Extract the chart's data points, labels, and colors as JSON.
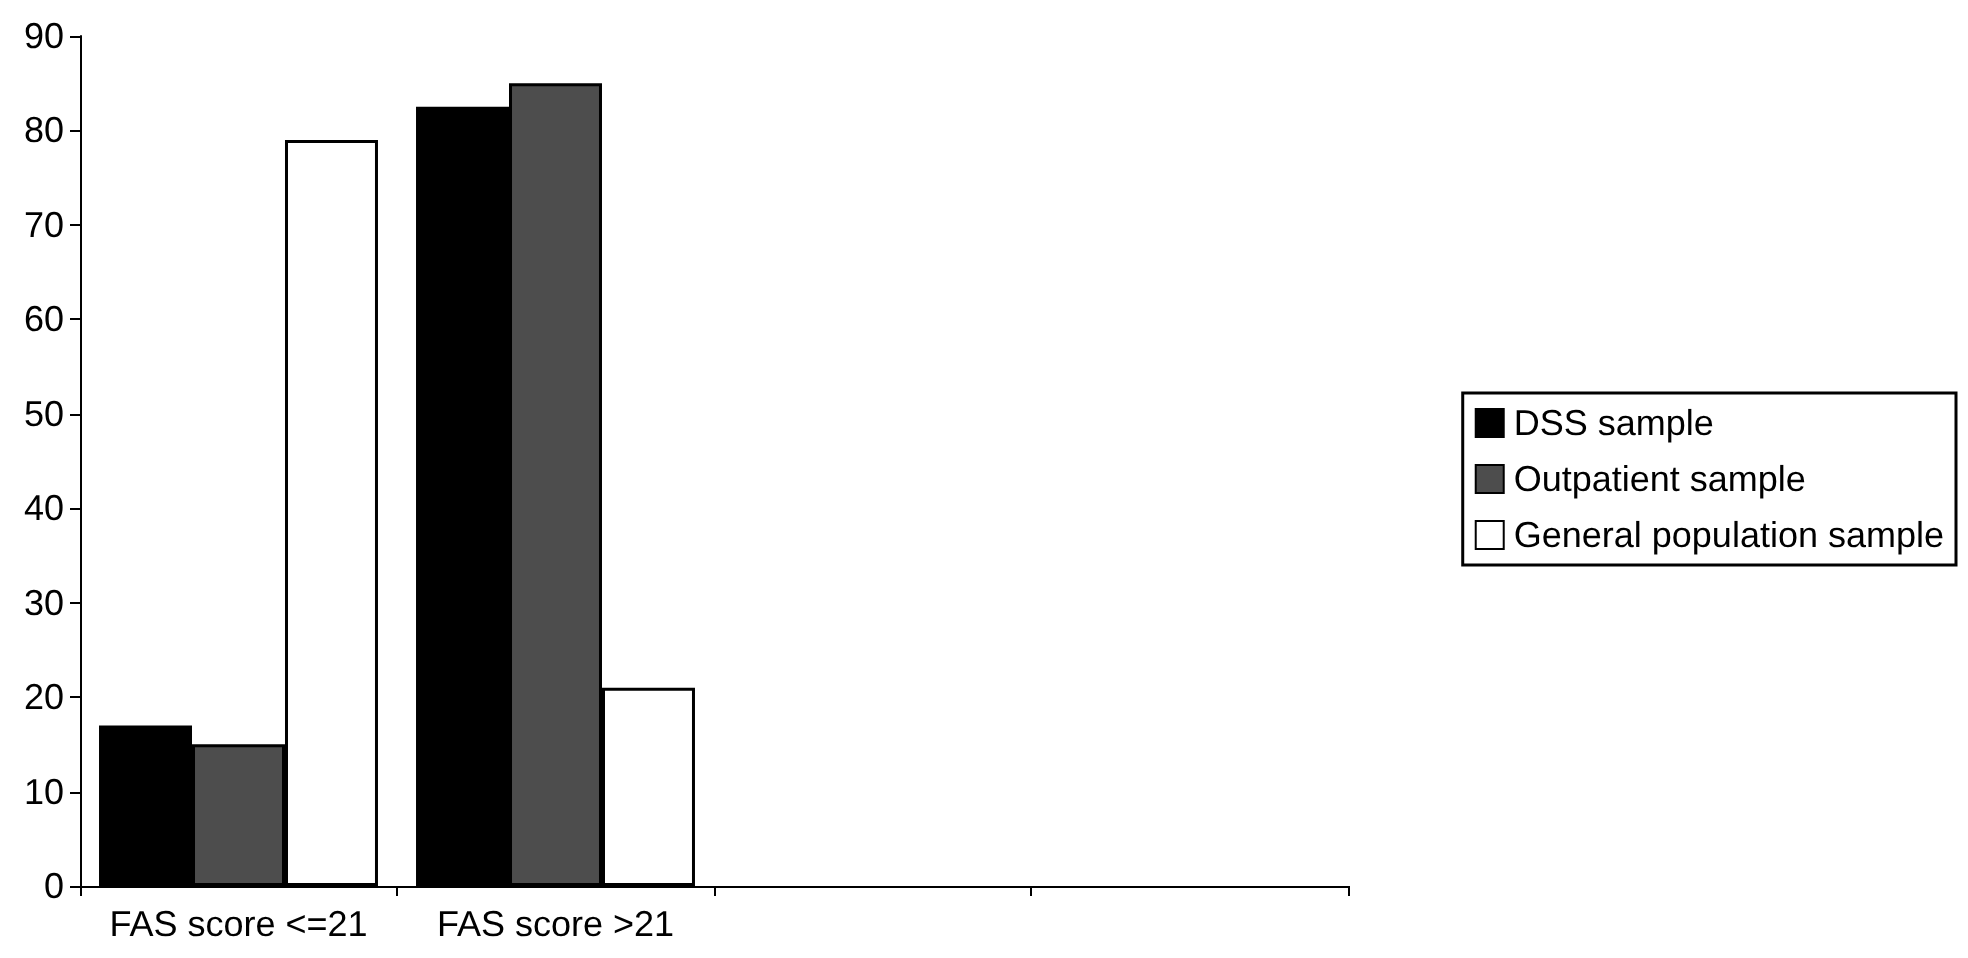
{
  "chart_data": {
    "type": "bar",
    "categories": [
      "FAS score <=21",
      "FAS score >21",
      null,
      null
    ],
    "series": [
      {
        "name": "DSS sample",
        "color": "#000000",
        "values": [
          17,
          82.5,
          null,
          null
        ]
      },
      {
        "name": "Outpatient sample",
        "color": "#4d4d4d",
        "values": [
          15,
          85,
          null,
          null
        ]
      },
      {
        "name": "General population sample",
        "color": "#ffffff",
        "values": [
          79,
          21,
          null,
          null
        ]
      }
    ],
    "ylim": [
      0,
      90
    ],
    "yticks": [
      0,
      10,
      20,
      30,
      40,
      50,
      60,
      70,
      80,
      90
    ],
    "grid": false,
    "legend": "right"
  }
}
